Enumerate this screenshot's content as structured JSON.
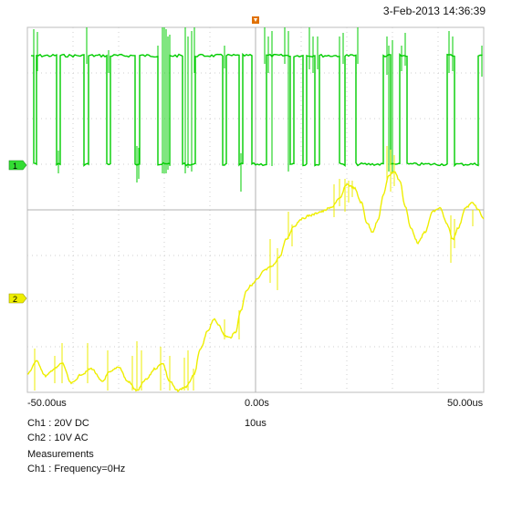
{
  "header": {
    "timestamp": "3-Feb-2013 14:36:39"
  },
  "axis": {
    "x_min_label": "-50.00us",
    "x_mid_label": "0.00s",
    "x_max_label": "50.00us",
    "timebase_label": "10us"
  },
  "channels": [
    {
      "id": "1",
      "marker_label": "1",
      "settings": "Ch1 : 20V  DC",
      "color": "#00cc00",
      "marker_color": "#33dd33"
    },
    {
      "id": "2",
      "marker_label": "2",
      "settings": "Ch2 : 10V  AC",
      "color": "#eeee00",
      "marker_color": "#eeee00"
    }
  ],
  "measurements": {
    "title": "Measurements",
    "items": [
      "Ch1 : Frequency=0Hz"
    ]
  },
  "colors": {
    "grid": "#cfcfcf",
    "trigger_marker": "#e07000",
    "frame": "#bdbdbd"
  }
}
